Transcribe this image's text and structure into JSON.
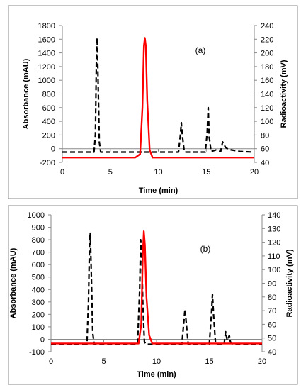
{
  "chart_data": [
    {
      "type": "line",
      "panel_label": "(a)",
      "xlabel": "Time (min)",
      "ylabel_left": "Absorbance (mAU)",
      "ylabel_right": "Radioactivity (mV)",
      "xlim": [
        0,
        20
      ],
      "ylim_left": [
        -200,
        1800
      ],
      "ylim_right": [
        40,
        240
      ],
      "xticks": [
        0,
        5,
        10,
        15,
        20
      ],
      "yticks_left": [
        -200,
        0,
        200,
        400,
        600,
        800,
        1000,
        1200,
        1400,
        1600,
        1800
      ],
      "yticks_right": [
        40,
        60,
        80,
        100,
        120,
        140,
        160,
        180,
        200,
        220,
        240
      ],
      "grid": false,
      "series": [
        {
          "axis": "left",
          "color": "#000000",
          "style": "dashed",
          "x": [
            0,
            3.3,
            3.45,
            3.55,
            3.62,
            3.7,
            3.85,
            4.0,
            12.1,
            12.3,
            12.4,
            12.5,
            12.7,
            12.9,
            14.9,
            15.1,
            15.2,
            15.3,
            15.5,
            16.0,
            16.5,
            16.7,
            16.85,
            17.0,
            17.3,
            18.5,
            20
          ],
          "y": [
            -50,
            -50,
            200,
            1300,
            1620,
            1200,
            100,
            -50,
            -50,
            200,
            380,
            200,
            -40,
            -50,
            -50,
            250,
            600,
            180,
            -40,
            -20,
            -40,
            100,
            60,
            20,
            -10,
            -40,
            -50
          ]
        },
        {
          "axis": "right",
          "color": "#ff0000",
          "style": "solid",
          "x": [
            0,
            7.6,
            8.1,
            8.35,
            8.5,
            8.6,
            8.7,
            8.85,
            9.1,
            9.4,
            20
          ],
          "y": [
            47,
            47,
            52,
            120,
            210,
            222,
            210,
            130,
            58,
            47,
            47
          ]
        }
      ]
    },
    {
      "type": "line",
      "panel_label": "(b)",
      "xlabel": "Time (min)",
      "ylabel_left": "Absorbance (mAU)",
      "ylabel_right": "Radioactivity (mV)",
      "xlim": [
        0,
        20
      ],
      "ylim_left": [
        -100,
        1000
      ],
      "ylim_right": [
        40,
        140
      ],
      "xticks": [
        0,
        5,
        10,
        15,
        20
      ],
      "yticks_left": [
        -100,
        0,
        100,
        200,
        300,
        400,
        500,
        600,
        700,
        800,
        900,
        1000
      ],
      "yticks_right": [
        40,
        50,
        60,
        70,
        80,
        90,
        100,
        110,
        120,
        130,
        140
      ],
      "grid": false,
      "series": [
        {
          "axis": "left",
          "color": "#000000",
          "style": "dashed",
          "x": [
            0,
            3.4,
            3.55,
            3.65,
            3.72,
            3.8,
            3.95,
            4.1,
            8.2,
            8.4,
            8.5,
            8.6,
            8.7,
            8.85,
            9.0,
            12.4,
            12.6,
            12.7,
            12.8,
            13.0,
            15.0,
            15.2,
            15.3,
            15.4,
            15.6,
            16.4,
            16.55,
            16.7,
            16.9,
            17.0,
            17.2,
            20
          ],
          "y": [
            -40,
            -40,
            300,
            760,
            860,
            600,
            50,
            -40,
            -40,
            400,
            800,
            700,
            300,
            -20,
            -40,
            -40,
            150,
            240,
            150,
            -40,
            -40,
            200,
            360,
            200,
            -40,
            -40,
            60,
            -10,
            30,
            -20,
            -40,
            -40
          ]
        },
        {
          "axis": "right",
          "color": "#ff0000",
          "style": "solid",
          "x": [
            0,
            8.3,
            8.55,
            8.7,
            8.8,
            8.9,
            9.05,
            9.3,
            9.6,
            20
          ],
          "y": [
            46,
            46,
            60,
            110,
            128,
            118,
            80,
            52,
            46,
            46
          ]
        }
      ]
    }
  ]
}
